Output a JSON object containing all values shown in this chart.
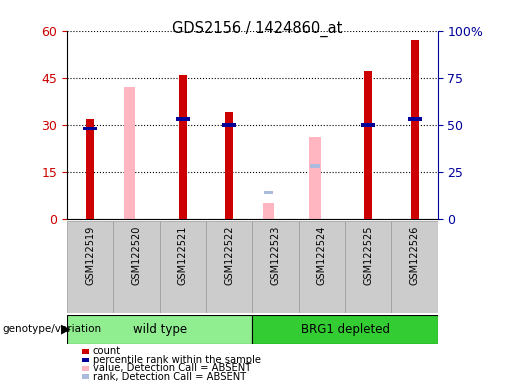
{
  "title": "GDS2156 / 1424860_at",
  "samples": [
    "GSM122519",
    "GSM122520",
    "GSM122521",
    "GSM122522",
    "GSM122523",
    "GSM122524",
    "GSM122525",
    "GSM122526"
  ],
  "groups": [
    {
      "label": "wild type",
      "indices": [
        0,
        1,
        2,
        3
      ],
      "color": "#90EE90"
    },
    {
      "label": "BRG1 depleted",
      "indices": [
        4,
        5,
        6,
        7
      ],
      "color": "#33CC33"
    }
  ],
  "count_values": [
    32,
    0,
    46,
    34,
    0,
    0,
    47,
    57
  ],
  "rank_values_pct": [
    48,
    0,
    53,
    50,
    0,
    0,
    50,
    53
  ],
  "absent_value_values": [
    0,
    42,
    0,
    0,
    5,
    26,
    0,
    0
  ],
  "absent_rank_values_pct": [
    0,
    0,
    0,
    0,
    14,
    28,
    0,
    0
  ],
  "ylim_left": [
    0,
    60
  ],
  "ylim_right": [
    0,
    100
  ],
  "yticks_left": [
    0,
    15,
    30,
    45,
    60
  ],
  "yticks_right": [
    0,
    25,
    50,
    75,
    100
  ],
  "color_count": "#CC0000",
  "color_rank": "#000099",
  "color_absent_value": "#FFB6C1",
  "color_absent_rank": "#AABBDD",
  "bg_color": "#CCCCCC",
  "bar_width": 0.25
}
